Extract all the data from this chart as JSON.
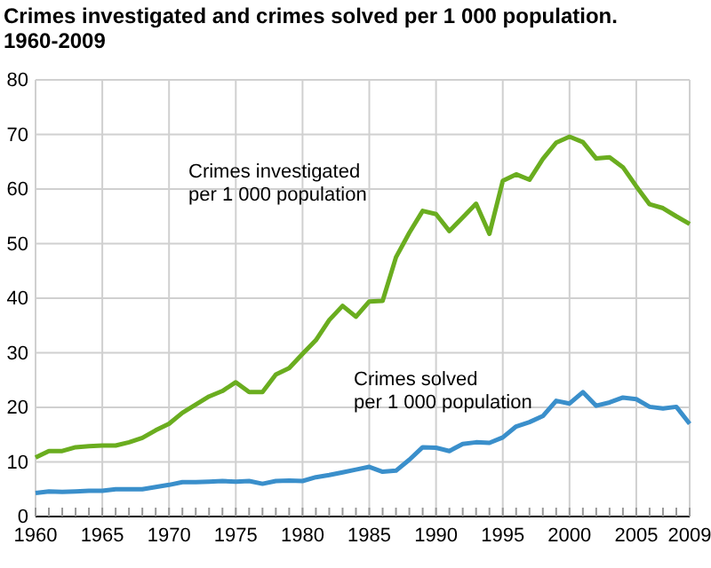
{
  "chart_data": {
    "type": "line",
    "title": "Crimes investigated and crimes solved per 1 000 population.",
    "subtitle": "1960-2009",
    "x": [
      1960,
      1961,
      1962,
      1963,
      1964,
      1965,
      1966,
      1967,
      1968,
      1969,
      1970,
      1971,
      1972,
      1973,
      1974,
      1975,
      1976,
      1977,
      1978,
      1979,
      1980,
      1981,
      1982,
      1983,
      1984,
      1985,
      1986,
      1987,
      1988,
      1989,
      1990,
      1991,
      1992,
      1993,
      1994,
      1995,
      1996,
      1997,
      1998,
      1999,
      2000,
      2001,
      2002,
      2003,
      2004,
      2005,
      2006,
      2007,
      2008,
      2009
    ],
    "series": [
      {
        "name": "Crimes investigated per 1 000 population",
        "color": "#6aad1f",
        "values": [
          10.8,
          12,
          12,
          12.7,
          12.9,
          13,
          13,
          13.6,
          14.4,
          15.8,
          17,
          19,
          20.5,
          22,
          23,
          24.6,
          22.8,
          22.8,
          26,
          27.2,
          29.8,
          32.3,
          36,
          38.6,
          36.6,
          39.4,
          39.5,
          47.5,
          52,
          56,
          55.4,
          52.3,
          54.8,
          57.3,
          51.8,
          61.5,
          62.7,
          61.7,
          65.5,
          68.5,
          69.6,
          68.6,
          65.6,
          65.8,
          64,
          60.5,
          57.2,
          56.5,
          55,
          53.6
        ]
      },
      {
        "name": "Crimes solved per 1 000 population",
        "color": "#3a8fcb",
        "values": [
          4.3,
          4.6,
          4.5,
          4.6,
          4.7,
          4.7,
          5,
          5,
          5,
          5.4,
          5.8,
          6.3,
          6.3,
          6.4,
          6.5,
          6.4,
          6.5,
          6,
          6.5,
          6.6,
          6.5,
          7.2,
          7.6,
          8.1,
          8.6,
          9.1,
          8.2,
          8.4,
          10.4,
          12.7,
          12.6,
          12,
          13.3,
          13.6,
          13.5,
          14.5,
          16.5,
          17.3,
          18.4,
          21.2,
          20.7,
          22.8,
          20.3,
          20.9,
          21.8,
          21.5,
          20.1,
          19.8,
          20.1,
          17
        ]
      }
    ],
    "xlim": [
      1960,
      2009
    ],
    "xticks": [
      1960,
      1965,
      1970,
      1975,
      1980,
      1985,
      1990,
      1995,
      2000,
      2005,
      2009
    ],
    "ylim": [
      0,
      80
    ],
    "yticks": [
      0,
      10,
      20,
      30,
      40,
      50,
      60,
      70,
      80
    ],
    "grid": true
  }
}
